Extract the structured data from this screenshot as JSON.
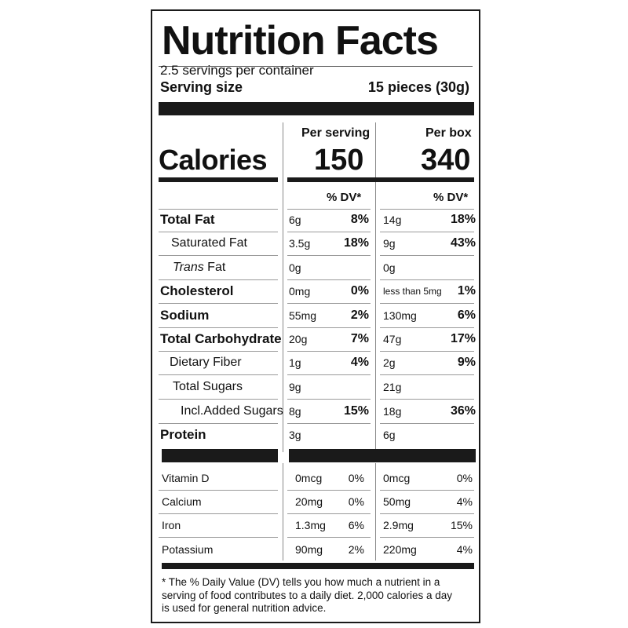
{
  "title": "Nutrition Facts",
  "servings_per_container": "2.5 servings per container",
  "serving_size_label": "Serving size",
  "serving_size_value": "15 pieces (30g)",
  "columns": {
    "per_serving": "Per serving",
    "per_box": "Per box",
    "dv_header": "% DV*"
  },
  "calories": {
    "label": "Calories",
    "per_serving": "150",
    "per_box": "340"
  },
  "nutrients": [
    {
      "name": "Total Fat",
      "serving_amt": "6g",
      "serving_dv": "8%",
      "box_amt": "14g",
      "box_dv": "18%"
    },
    {
      "name": "Saturated Fat",
      "serving_amt": "3.5g",
      "serving_dv": "18%",
      "box_amt": "9g",
      "box_dv": "43%"
    },
    {
      "name_italic": "Trans",
      "name": " Fat",
      "serving_amt": "0g",
      "serving_dv": "",
      "box_amt": "0g",
      "box_dv": ""
    },
    {
      "name": "Cholesterol",
      "serving_amt": "0mg",
      "serving_dv": "0%",
      "box_amt": "less than 5mg",
      "box_dv": "1%"
    },
    {
      "name": "Sodium",
      "serving_amt": "55mg",
      "serving_dv": "2%",
      "box_amt": "130mg",
      "box_dv": "6%"
    },
    {
      "name": "Total Carbohydrate",
      "serving_amt": "20g",
      "serving_dv": "7%",
      "box_amt": "47g",
      "box_dv": "17%"
    },
    {
      "name": "Dietary Fiber",
      "serving_amt": "1g",
      "serving_dv": "4%",
      "box_amt": "2g",
      "box_dv": "9%"
    },
    {
      "name": "Total Sugars",
      "serving_amt": "9g",
      "serving_dv": "",
      "box_amt": "21g",
      "box_dv": ""
    },
    {
      "name": "Incl.Added Sugars",
      "serving_amt": "8g",
      "serving_dv": "15%",
      "box_amt": "18g",
      "box_dv": "36%"
    },
    {
      "name": "Protein",
      "serving_amt": "3g",
      "serving_dv": "",
      "box_amt": "6g",
      "box_dv": ""
    }
  ],
  "vitamins": [
    {
      "name": "Vitamin D",
      "serving_amt": "0mcg",
      "serving_dv": "0%",
      "box_amt": "0mcg",
      "box_dv": "0%"
    },
    {
      "name": "Calcium",
      "serving_amt": "20mg",
      "serving_dv": "0%",
      "box_amt": "50mg",
      "box_dv": "4%"
    },
    {
      "name": "Iron",
      "serving_amt": "1.3mg",
      "serving_dv": "6%",
      "box_amt": "2.9mg",
      "box_dv": "15%"
    },
    {
      "name": "Potassium",
      "serving_amt": "90mg",
      "serving_dv": "2%",
      "box_amt": "220mg",
      "box_dv": "4%"
    }
  ],
  "footnote": "* The % Daily Value (DV) tells you how much a nutrient in a serving of food contributes to a daily diet. 2,000 calories a day is used for general nutrition advice."
}
